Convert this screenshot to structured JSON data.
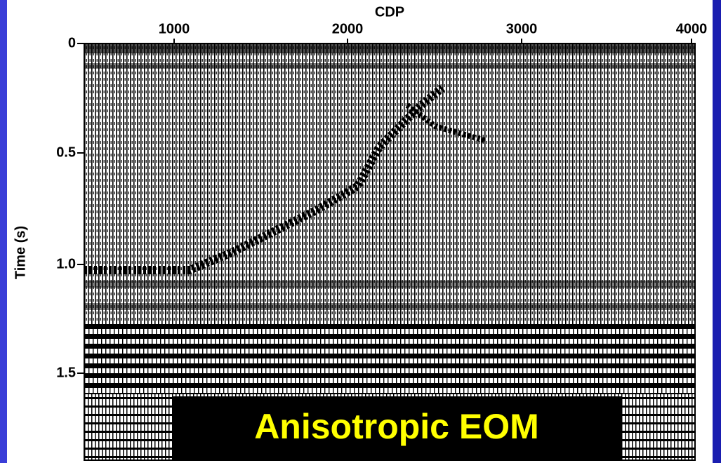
{
  "x_axis": {
    "label": "CDP",
    "ticks": [
      "1000",
      "2000",
      "3000",
      "4000"
    ]
  },
  "y_axis": {
    "label": "Time (s)",
    "ticks": [
      "0",
      "0.5",
      "1.0",
      "1.5"
    ]
  },
  "caption": "Anisotropic EOM"
}
